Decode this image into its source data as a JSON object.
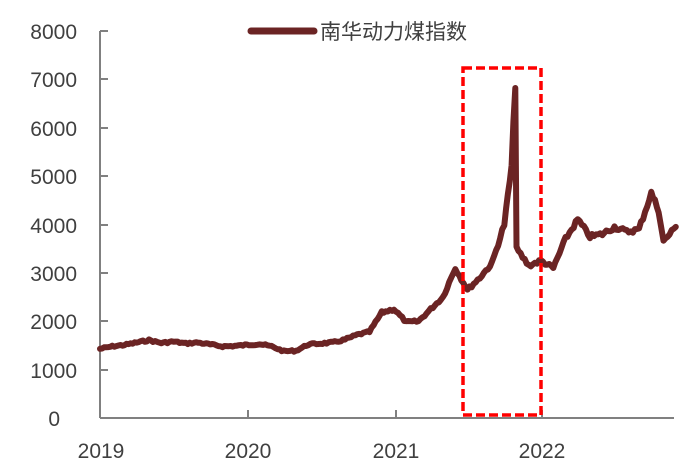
{
  "chart_data": {
    "type": "line",
    "title": "",
    "xlabel": "",
    "ylabel": "",
    "ylim": [
      0,
      8000
    ],
    "xlim": [
      "2019-01",
      "2022-12"
    ],
    "grid": false,
    "legend_position": "top-center",
    "y_ticks": [
      0,
      1000,
      2000,
      3000,
      4000,
      5000,
      6000,
      7000,
      8000
    ],
    "x_ticks": [
      "2019",
      "2020",
      "2021",
      "2022"
    ],
    "series": [
      {
        "name": "南华动力煤指数",
        "color": "#6B2424",
        "points": [
          [
            "2019-01",
            1430
          ],
          [
            "2019-02",
            1480
          ],
          [
            "2019-03",
            1510
          ],
          [
            "2019-04",
            1560
          ],
          [
            "2019-05",
            1610
          ],
          [
            "2019-06",
            1550
          ],
          [
            "2019-07",
            1580
          ],
          [
            "2019-08",
            1540
          ],
          [
            "2019-09",
            1560
          ],
          [
            "2019-10",
            1520
          ],
          [
            "2019-11",
            1480
          ],
          [
            "2019-12",
            1490
          ],
          [
            "2020-01",
            1510
          ],
          [
            "2020-02",
            1530
          ],
          [
            "2020-03",
            1480
          ],
          [
            "2020-04",
            1380
          ],
          [
            "2020-05",
            1390
          ],
          [
            "2020-06",
            1520
          ],
          [
            "2020-07",
            1540
          ],
          [
            "2020-08",
            1560
          ],
          [
            "2020-09",
            1620
          ],
          [
            "2020-10",
            1720
          ],
          [
            "2020-11",
            1780
          ],
          [
            "2020-12",
            2180
          ],
          [
            "2021-01",
            2250
          ],
          [
            "2021-02",
            1980
          ],
          [
            "2021-03",
            2000
          ],
          [
            "2021-04",
            2250
          ],
          [
            "2021-05",
            2500
          ],
          [
            "2021-06",
            3100
          ],
          [
            "2021-07",
            2650
          ],
          [
            "2021-08",
            2900
          ],
          [
            "2021-09",
            3200
          ],
          [
            "2021-10",
            4000
          ],
          [
            "2021-10b",
            5200
          ],
          [
            "2021-10c",
            6900
          ],
          [
            "2021-11",
            3500
          ],
          [
            "2021-12",
            3150
          ],
          [
            "2022-01",
            3250
          ],
          [
            "2022-02",
            3100
          ],
          [
            "2022-03",
            3700
          ],
          [
            "2022-04",
            4100
          ],
          [
            "2022-05",
            3750
          ],
          [
            "2022-06",
            3800
          ],
          [
            "2022-07",
            3950
          ],
          [
            "2022-08",
            3850
          ],
          [
            "2022-09",
            3900
          ],
          [
            "2022-10",
            4650
          ],
          [
            "2022-10b",
            4300
          ],
          [
            "2022-11",
            3650
          ],
          [
            "2022-12",
            3950
          ]
        ]
      }
    ],
    "annotations": [
      {
        "type": "dashed-rectangle",
        "color": "#FF0000",
        "x_range": [
          "2021-07",
          "2022-01"
        ],
        "y_range": [
          0,
          7200
        ],
        "note": "highlights 2021 spike"
      }
    ]
  },
  "legend": {
    "label": "南华动力煤指数"
  },
  "axes": {
    "y_labels": [
      "0",
      "1000",
      "2000",
      "3000",
      "4000",
      "5000",
      "6000",
      "7000",
      "8000"
    ],
    "x_labels": [
      "2019",
      "2020",
      "2021",
      "2022"
    ]
  }
}
